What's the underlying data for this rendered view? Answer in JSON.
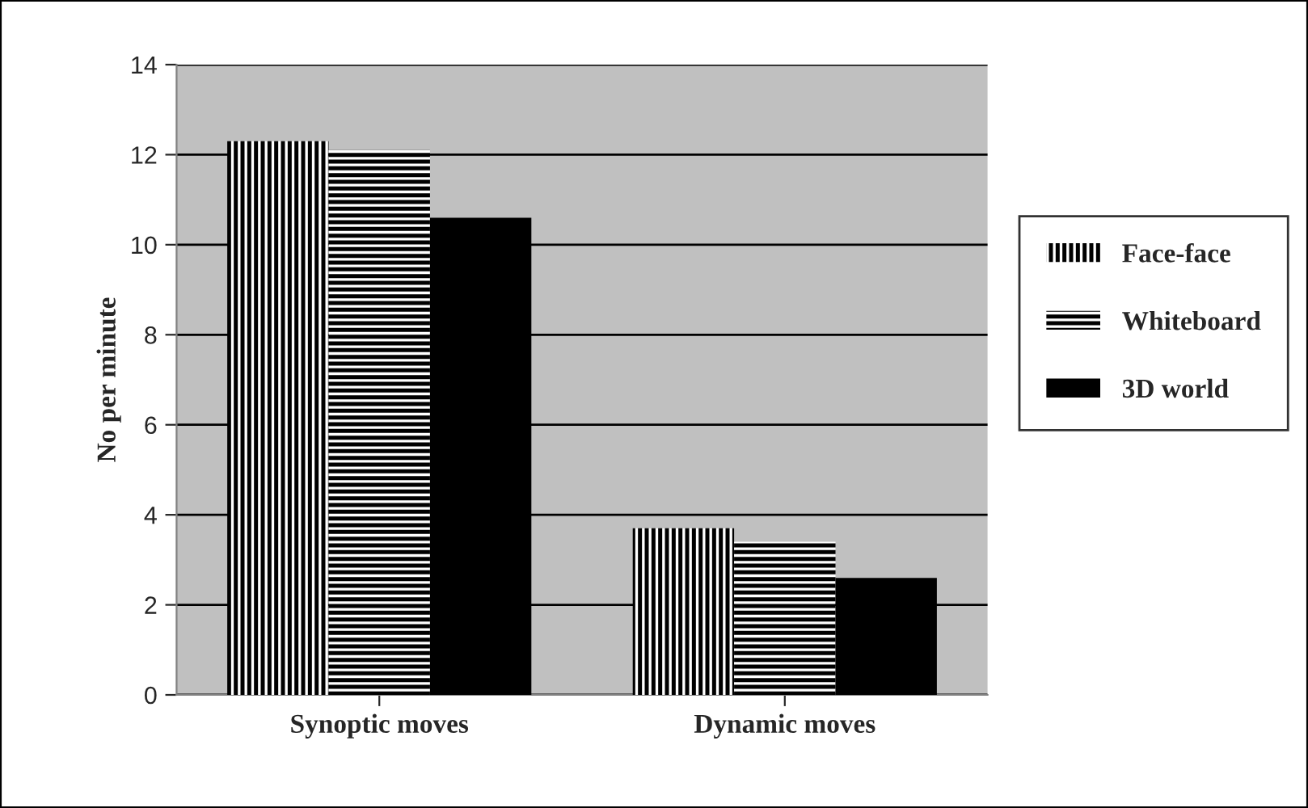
{
  "chart_data": {
    "type": "bar",
    "ylabel": "No per minute",
    "categories": [
      "Synoptic moves",
      "Dynamic moves"
    ],
    "series": [
      {
        "name": "Face-face",
        "color": "#000000",
        "values": [
          12.3,
          3.7
        ]
      },
      {
        "name": "Whiteboard",
        "color": "#000000",
        "values": [
          12.1,
          3.4
        ]
      },
      {
        "name": "3D world",
        "color": "#000000",
        "values": [
          10.6,
          2.6
        ]
      }
    ],
    "ylim": [
      0,
      14
    ],
    "yticks": [
      0,
      2,
      4,
      6,
      8,
      10,
      12,
      14
    ],
    "grid": "y",
    "legend": "right"
  }
}
